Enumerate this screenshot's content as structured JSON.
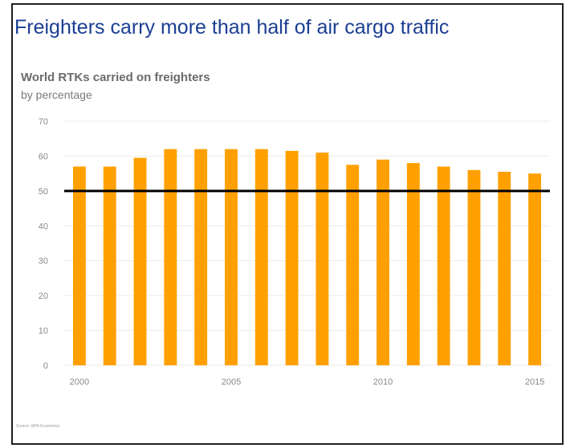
{
  "header": {
    "title": "Freighters carry more than half of air cargo traffic"
  },
  "chart_data": {
    "type": "bar",
    "title": "World RTKs carried on freighters",
    "subtitle": "by percentage",
    "xlabel": "",
    "ylabel": "",
    "categories": [
      "2000",
      "2001",
      "2002",
      "2003",
      "2004",
      "2005",
      "2006",
      "2007",
      "2008",
      "2009",
      "2010",
      "2011",
      "2012",
      "2013",
      "2014",
      "2015"
    ],
    "values": [
      57,
      57,
      59.5,
      62,
      62,
      62,
      62,
      61.5,
      61,
      57.5,
      59,
      58,
      57,
      56,
      55.5,
      55
    ],
    "x_tick_labels": [
      {
        "index": 0,
        "label": "2000"
      },
      {
        "index": 5,
        "label": "2005"
      },
      {
        "index": 10,
        "label": "2010"
      },
      {
        "index": 15,
        "label": "2015"
      }
    ],
    "ylim": [
      0,
      70
    ],
    "yticks": [
      0,
      10,
      20,
      30,
      40,
      50,
      60,
      70
    ],
    "reference_line": {
      "value": 50,
      "color": "#000000"
    },
    "bar_color": "#ffa000",
    "grid": true,
    "legend": "none"
  },
  "footer": {
    "source": "Source: IATA Economics"
  },
  "colors": {
    "title": "#1b3f93",
    "bar": "#ffa000",
    "grid": "#ebebeb",
    "reference": "#000000"
  }
}
